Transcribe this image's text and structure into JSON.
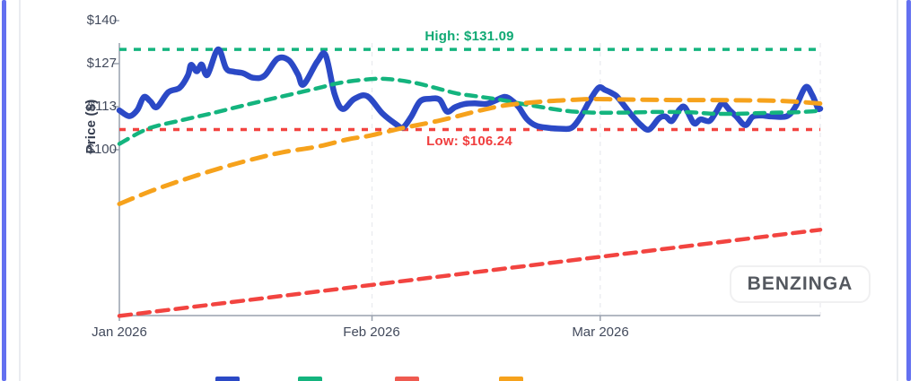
{
  "page": {
    "watermark": "BENZINGA"
  },
  "chart_data": {
    "type": "line",
    "title": "",
    "xlabel": "",
    "ylabel": "Price ($)",
    "x_tick_labels": [
      "Jan 2026",
      "Feb 2026",
      "Mar 2026"
    ],
    "x_tick_days": [
      0,
      31,
      59
    ],
    "x_range_days": [
      0,
      86
    ],
    "y_tick_labels": [
      "$100",
      "$113",
      "$127",
      "$140"
    ],
    "y_tick_values": [
      100,
      113.33,
      126.67,
      140
    ],
    "y_range": [
      48.6,
      146.4
    ],
    "grid": "vertical-dashed",
    "grid_x_days": [
      31,
      59,
      86
    ],
    "high_line": {
      "label": "High: $131.09",
      "value": 131.09,
      "color": "#14b47e"
    },
    "low_line": {
      "label": "Low: $106.24",
      "value": 106.24,
      "color": "#f24440"
    },
    "series": [
      {
        "id": "price-line",
        "color": "#2b49c6",
        "style": "solid",
        "width": 6.5,
        "points": [
          [
            0,
            112.2
          ],
          [
            1.2,
            110.4
          ],
          [
            2.2,
            112.3
          ],
          [
            3,
            116.3
          ],
          [
            3.8,
            115
          ],
          [
            4.6,
            113.2
          ],
          [
            6,
            117.8
          ],
          [
            7.4,
            119.2
          ],
          [
            8.4,
            123
          ],
          [
            8.8,
            126.3
          ],
          [
            9.5,
            124.3
          ],
          [
            10.1,
            126.4
          ],
          [
            10.8,
            123.2
          ],
          [
            12.1,
            131.09
          ],
          [
            13.1,
            125.2
          ],
          [
            14,
            124.2
          ],
          [
            15.2,
            123.7
          ],
          [
            16.4,
            122.3
          ],
          [
            17.8,
            122.9
          ],
          [
            19.4,
            128.2
          ],
          [
            20.8,
            127.7
          ],
          [
            21.9,
            123.4
          ],
          [
            22.6,
            120.2
          ],
          [
            24.3,
            127.4
          ],
          [
            25.3,
            129.3
          ],
          [
            26.4,
            117.3
          ],
          [
            27.4,
            112.6
          ],
          [
            28.8,
            115.7
          ],
          [
            30.4,
            116.6
          ],
          [
            32.3,
            111.2
          ],
          [
            34,
            107.8
          ],
          [
            34.8,
            106.9
          ],
          [
            35.8,
            110.2
          ],
          [
            36.9,
            115
          ],
          [
            38.2,
            115.8
          ],
          [
            39.3,
            115.5
          ],
          [
            40.2,
            111.8
          ],
          [
            41.2,
            113.2
          ],
          [
            42.4,
            114.2
          ],
          [
            43.6,
            114.4
          ],
          [
            45,
            114.2
          ],
          [
            46.1,
            115.2
          ],
          [
            47.3,
            116.4
          ],
          [
            48.2,
            115.2
          ],
          [
            49,
            113.2
          ],
          [
            50,
            109.5
          ],
          [
            51.1,
            107.5
          ],
          [
            52.5,
            106.8
          ],
          [
            54.2,
            106.5
          ],
          [
            55.5,
            106.8
          ],
          [
            56.6,
            110.2
          ],
          [
            57.7,
            115.2
          ],
          [
            58.8,
            119.2
          ],
          [
            59.6,
            118.5
          ],
          [
            60.3,
            117.7
          ],
          [
            61,
            116.6
          ],
          [
            61.9,
            113.8
          ],
          [
            63,
            110.3
          ],
          [
            64,
            107.6
          ],
          [
            65,
            106.24
          ],
          [
            66.2,
            109.7
          ],
          [
            67,
            110.3
          ],
          [
            67.8,
            108.9
          ],
          [
            68.7,
            112.4
          ],
          [
            69.4,
            113.1
          ],
          [
            70.5,
            108.2
          ],
          [
            71.3,
            109.4
          ],
          [
            72.4,
            108.9
          ],
          [
            73.2,
            111.6
          ],
          [
            74,
            114.4
          ],
          [
            74.9,
            112.2
          ],
          [
            75.7,
            110.3
          ],
          [
            76.8,
            107.6
          ],
          [
            77.7,
            110.2
          ],
          [
            78.7,
            110.6
          ],
          [
            80,
            110.3
          ],
          [
            81.9,
            110.4
          ],
          [
            83,
            113.5
          ],
          [
            84.2,
            119.4
          ],
          [
            85,
            117
          ],
          [
            85.7,
            112.9
          ],
          [
            86,
            112.7
          ]
        ]
      },
      {
        "id": "ma-green",
        "color": "#14b47e",
        "style": "dashed",
        "dash": "11 8",
        "width": 4.5,
        "points": [
          [
            0,
            101.8
          ],
          [
            3.5,
            106.5
          ],
          [
            7.4,
            109
          ],
          [
            11.2,
            111.2
          ],
          [
            14.9,
            113.5
          ],
          [
            18.4,
            115.6
          ],
          [
            21,
            117.1
          ],
          [
            24.4,
            119.1
          ],
          [
            27,
            120.7
          ],
          [
            30.5,
            121.8
          ],
          [
            33,
            121.9
          ],
          [
            36.3,
            120.7
          ],
          [
            39.3,
            118.8
          ],
          [
            41.5,
            117.4
          ],
          [
            44.3,
            116.4
          ],
          [
            46.7,
            115.5
          ],
          [
            49.2,
            114.3
          ],
          [
            51.8,
            113.2
          ],
          [
            54,
            112.3
          ],
          [
            55.8,
            111.8
          ],
          [
            58,
            111.5
          ],
          [
            62,
            111.5
          ],
          [
            66,
            111.7
          ],
          [
            70,
            111.6
          ],
          [
            72.5,
            111.2
          ],
          [
            75,
            111.1
          ],
          [
            78,
            111.3
          ],
          [
            80.5,
            111.5
          ],
          [
            83,
            111.6
          ],
          [
            85,
            111.9
          ],
          [
            86,
            112.1
          ]
        ]
      },
      {
        "id": "trend-red",
        "color": "#f24440",
        "style": "dashed",
        "dash": "13 8",
        "width": 4.5,
        "points": [
          [
            0,
            48.5
          ],
          [
            86,
            75.2
          ]
        ]
      },
      {
        "id": "ma-orange",
        "color": "#f6a21c",
        "style": "dashed",
        "dash": "16 10",
        "width": 5,
        "points": [
          [
            0,
            83.2
          ],
          [
            4,
            87.3
          ],
          [
            8,
            90.8
          ],
          [
            12,
            94
          ],
          [
            16,
            96.8
          ],
          [
            20,
            99.2
          ],
          [
            24.4,
            101
          ],
          [
            28,
            103.2
          ],
          [
            30.8,
            104.4
          ],
          [
            34.7,
            106.7
          ],
          [
            38.5,
            108.6
          ],
          [
            41.5,
            110.4
          ],
          [
            44,
            112
          ],
          [
            47,
            113.6
          ],
          [
            50,
            114.5
          ],
          [
            53,
            115.1
          ],
          [
            56,
            115.5
          ],
          [
            58,
            115.7
          ],
          [
            61,
            115.6
          ],
          [
            64,
            115.5
          ],
          [
            68,
            115.4
          ],
          [
            72,
            115.4
          ],
          [
            76,
            115.3
          ],
          [
            80,
            115.2
          ],
          [
            83,
            114.9
          ],
          [
            86,
            114.3
          ]
        ]
      }
    ],
    "legend_swatch_colors": [
      "#2b49c6",
      "#14b47e",
      "#ef5a50",
      "#f6a21c"
    ],
    "legend_position": "bottom"
  }
}
